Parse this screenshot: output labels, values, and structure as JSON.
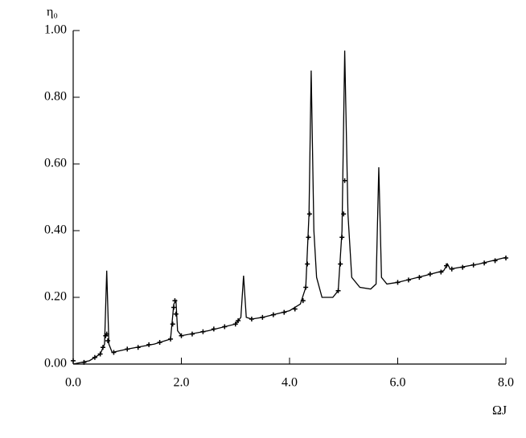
{
  "chart_data": {
    "type": "line",
    "xlabel": "ΩJ",
    "ylabel": "η₀",
    "xlim": [
      0,
      8
    ],
    "ylim": [
      0,
      1
    ],
    "xticks": [
      {
        "value": 0,
        "label": "0.0"
      },
      {
        "value": 2,
        "label": "2.0"
      },
      {
        "value": 4,
        "label": "4.0"
      },
      {
        "value": 6,
        "label": "6.0"
      },
      {
        "value": 8,
        "label": "8.0"
      }
    ],
    "yticks": [
      {
        "value": 0,
        "label": "0.00"
      },
      {
        "value": 0.2,
        "label": "0.20"
      },
      {
        "value": 0.4,
        "label": "0.40"
      },
      {
        "value": 0.6,
        "label": "0.60"
      },
      {
        "value": 0.8,
        "label": "0.80"
      },
      {
        "value": 1,
        "label": "1.00"
      }
    ],
    "grid": false,
    "series": [
      {
        "color": "#000000",
        "markers": false,
        "x": [
          0,
          0.3,
          0.5,
          0.58,
          0.62,
          0.66,
          0.72,
          1.0,
          1.5,
          1.8,
          1.86,
          1.9,
          1.93,
          2.0,
          2.5,
          3.0,
          3.1,
          3.15,
          3.2,
          3.3,
          3.5,
          4.0,
          4.2,
          4.3,
          4.36,
          4.4,
          4.45,
          4.5,
          4.6,
          4.8,
          4.9,
          4.97,
          5.02,
          5.08,
          5.15,
          5.3,
          5.5,
          5.6,
          5.65,
          5.7,
          5.8,
          6.0,
          6.5,
          6.85,
          6.92,
          6.97,
          7.5,
          8.0
        ],
        "values": [
          0,
          0.01,
          0.03,
          0.06,
          0.28,
          0.06,
          0.035,
          0.045,
          0.06,
          0.075,
          0.18,
          0.19,
          0.1,
          0.085,
          0.1,
          0.12,
          0.14,
          0.265,
          0.14,
          0.135,
          0.14,
          0.16,
          0.18,
          0.23,
          0.45,
          0.88,
          0.4,
          0.26,
          0.2,
          0.2,
          0.22,
          0.4,
          0.94,
          0.45,
          0.26,
          0.23,
          0.225,
          0.24,
          0.59,
          0.26,
          0.24,
          0.245,
          0.265,
          0.28,
          0.3,
          0.285,
          0.3,
          0.32
        ]
      },
      {
        "color": "#000000",
        "markers": true,
        "x": [
          0.0,
          0.2,
          0.4,
          0.5,
          0.55,
          0.6,
          0.62,
          0.64,
          0.75,
          1.0,
          1.2,
          1.4,
          1.6,
          1.8,
          1.84,
          1.86,
          1.88,
          1.9,
          2.0,
          2.2,
          2.4,
          2.6,
          2.8,
          3.0,
          3.05,
          3.3,
          3.5,
          3.7,
          3.9,
          4.1,
          4.25,
          4.3,
          4.33,
          4.35,
          4.37,
          4.9,
          4.94,
          4.97,
          5.0,
          5.02,
          6.0,
          6.2,
          6.4,
          6.6,
          6.8,
          6.9,
          7.0,
          7.2,
          7.4,
          7.6,
          7.8,
          8.0
        ],
        "values": [
          0.01,
          0.005,
          0.02,
          0.03,
          0.05,
          0.085,
          0.09,
          0.07,
          0.035,
          0.045,
          0.05,
          0.058,
          0.065,
          0.075,
          0.12,
          0.17,
          0.19,
          0.15,
          0.085,
          0.09,
          0.097,
          0.105,
          0.112,
          0.12,
          0.13,
          0.135,
          0.14,
          0.148,
          0.155,
          0.165,
          0.19,
          0.23,
          0.3,
          0.38,
          0.45,
          0.22,
          0.3,
          0.38,
          0.45,
          0.55,
          0.245,
          0.252,
          0.26,
          0.27,
          0.276,
          0.295,
          0.285,
          0.29,
          0.297,
          0.303,
          0.31,
          0.318
        ]
      }
    ]
  }
}
